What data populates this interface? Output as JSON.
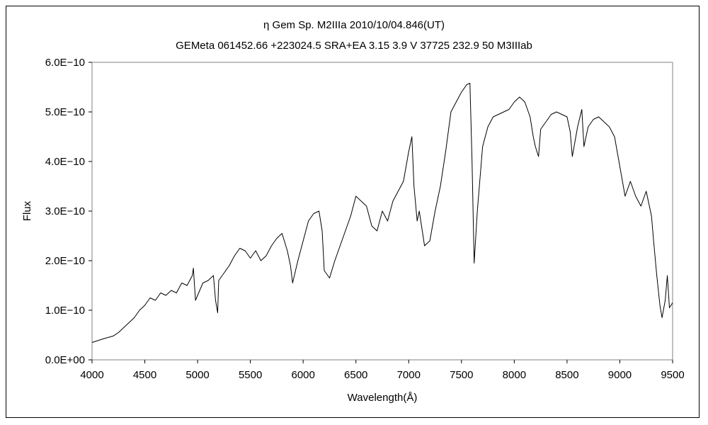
{
  "chart_data": {
    "type": "line",
    "title": "η Gem    Sp. M2IIIa    2010/10/04.846(UT)",
    "subtitle": "GEMeta 061452.66 +223024.5 SRA+EA 3.15 3.9  V 37725 232.9 50 M3IIIab",
    "xlabel": "Wavelength(Å)",
    "ylabel": "Flux",
    "xlim": [
      4000,
      9500
    ],
    "ylim": [
      0,
      6e-10
    ],
    "x_ticks": [
      4000,
      4500,
      5000,
      5500,
      6000,
      6500,
      7000,
      7500,
      8000,
      8500,
      9000,
      9500
    ],
    "x_tick_labels": [
      "4000",
      "4500",
      "5000",
      "5500",
      "6000",
      "6500",
      "7000",
      "7500",
      "8000",
      "8500",
      "9000",
      "9500"
    ],
    "y_ticks": [
      0,
      1e-10,
      2e-10,
      3e-10,
      4e-10,
      5e-10,
      6e-10
    ],
    "y_tick_labels": [
      "0.0E+00",
      "1.0E−10",
      "2.0E−10",
      "3.0E−10",
      "4.0E−10",
      "5.0E−10",
      "6.0E−10"
    ],
    "grid": false,
    "line_color": "#000000",
    "series": [
      {
        "x": [
          4000,
          4100,
          4200,
          4250,
          4300,
          4350,
          4400,
          4450,
          4500,
          4550,
          4600,
          4650,
          4700,
          4750,
          4800,
          4850,
          4900,
          4950,
          4960,
          4980,
          5000,
          5050,
          5100,
          5150,
          5170,
          5190,
          5200,
          5250,
          5300,
          5350,
          5400,
          5450,
          5500,
          5550,
          5600,
          5650,
          5700,
          5750,
          5800,
          5850,
          5880,
          5900,
          5950,
          6000,
          6050,
          6100,
          6150,
          6180,
          6200,
          6250,
          6300,
          6350,
          6400,
          6450,
          6500,
          6550,
          6600,
          6650,
          6700,
          6750,
          6800,
          6850,
          6900,
          6950,
          7000,
          7030,
          7050,
          7080,
          7100,
          7150,
          7200,
          7250,
          7300,
          7350,
          7400,
          7450,
          7500,
          7550,
          7580,
          7600,
          7620,
          7650,
          7700,
          7750,
          7800,
          7850,
          7900,
          7950,
          8000,
          8050,
          8100,
          8150,
          8180,
          8200,
          8230,
          8250,
          8300,
          8350,
          8400,
          8450,
          8500,
          8530,
          8550,
          8600,
          8640,
          8660,
          8700,
          8750,
          8800,
          8850,
          8900,
          8950,
          9000,
          9050,
          9100,
          9150,
          9200,
          9250,
          9300,
          9320,
          9350,
          9380,
          9400,
          9430,
          9450,
          9470,
          9500
        ],
        "y": [
          3.5e-11,
          4.2e-11,
          4.8e-11,
          5.5e-11,
          6.5e-11,
          7.5e-11,
          8.5e-11,
          1e-10,
          1.1e-10,
          1.25e-10,
          1.2e-10,
          1.35e-10,
          1.3e-10,
          1.4e-10,
          1.35e-10,
          1.55e-10,
          1.5e-10,
          1.7e-10,
          1.85e-10,
          1.2e-10,
          1.3e-10,
          1.55e-10,
          1.6e-10,
          1.7e-10,
          1.2e-10,
          9.5e-11,
          1.6e-10,
          1.75e-10,
          1.9e-10,
          2.1e-10,
          2.25e-10,
          2.2e-10,
          2.05e-10,
          2.2e-10,
          2e-10,
          2.1e-10,
          2.3e-10,
          2.45e-10,
          2.55e-10,
          2.2e-10,
          1.9e-10,
          1.55e-10,
          2e-10,
          2.4e-10,
          2.8e-10,
          2.95e-10,
          3e-10,
          2.6e-10,
          1.8e-10,
          1.65e-10,
          2e-10,
          2.3e-10,
          2.6e-10,
          2.9e-10,
          3.3e-10,
          3.2e-10,
          3.1e-10,
          2.7e-10,
          2.6e-10,
          3e-10,
          2.8e-10,
          3.2e-10,
          3.4e-10,
          3.6e-10,
          4.2e-10,
          4.5e-10,
          3.5e-10,
          2.8e-10,
          3e-10,
          2.3e-10,
          2.4e-10,
          3e-10,
          3.5e-10,
          4.2e-10,
          5e-10,
          5.2e-10,
          5.4e-10,
          5.55e-10,
          5.58e-10,
          4e-10,
          1.95e-10,
          3e-10,
          4.3e-10,
          4.7e-10,
          4.9e-10,
          4.95e-10,
          5e-10,
          5.05e-10,
          5.2e-10,
          5.3e-10,
          5.2e-10,
          4.9e-10,
          4.5e-10,
          4.3e-10,
          4.1e-10,
          4.65e-10,
          4.8e-10,
          4.95e-10,
          5e-10,
          4.95e-10,
          4.9e-10,
          4.6e-10,
          4.1e-10,
          4.7e-10,
          5.05e-10,
          4.3e-10,
          4.7e-10,
          4.85e-10,
          4.9e-10,
          4.8e-10,
          4.7e-10,
          4.5e-10,
          3.9e-10,
          3.3e-10,
          3.6e-10,
          3.3e-10,
          3.1e-10,
          3.4e-10,
          2.9e-10,
          2.4e-10,
          1.7e-10,
          1.1e-10,
          8.5e-11,
          1.2e-10,
          1.7e-10,
          1.05e-10,
          1.15e-10
        ]
      }
    ]
  }
}
